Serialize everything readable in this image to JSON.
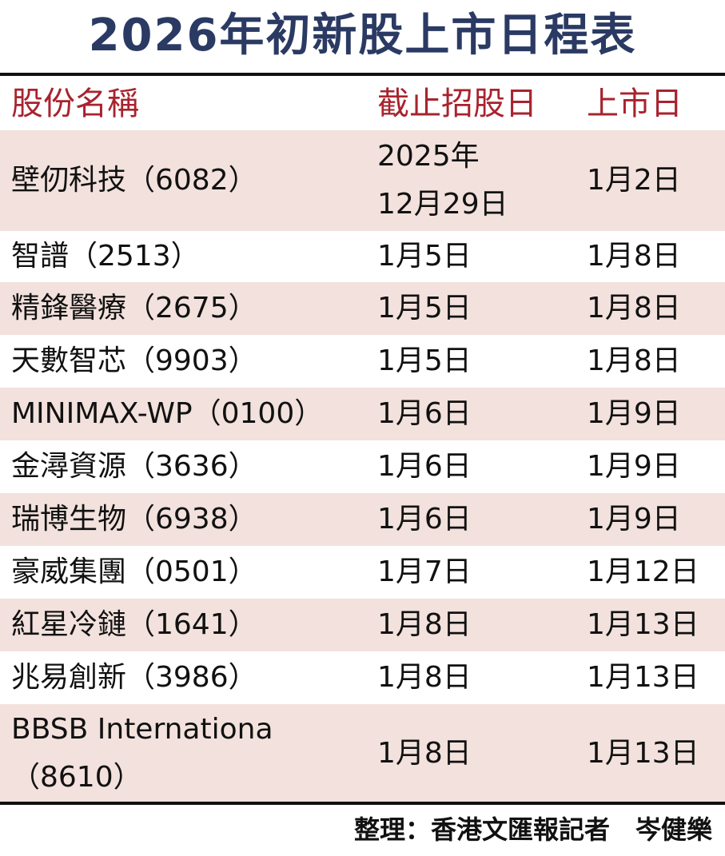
{
  "title": "2026年初新股上市日程表",
  "columns": [
    "股份名稱",
    "截止招股日",
    "上市日"
  ],
  "rows": [
    {
      "name": [
        "壁仞科技（6082）"
      ],
      "close": [
        "2025年",
        "12月29日"
      ],
      "list": "1月2日",
      "shaded": true
    },
    {
      "name": [
        "智譜（2513）"
      ],
      "close": [
        "1月5日"
      ],
      "list": "1月8日",
      "shaded": false
    },
    {
      "name": [
        "精鋒醫療（2675）"
      ],
      "close": [
        "1月5日"
      ],
      "list": "1月8日",
      "shaded": true
    },
    {
      "name": [
        "天數智芯（9903）"
      ],
      "close": [
        "1月5日"
      ],
      "list": "1月8日",
      "shaded": false
    },
    {
      "name": [
        "MINIMAX-WP（0100）"
      ],
      "close": [
        "1月6日"
      ],
      "list": "1月9日",
      "shaded": true
    },
    {
      "name": [
        "金潯資源（3636）"
      ],
      "close": [
        "1月6日"
      ],
      "list": "1月9日",
      "shaded": false
    },
    {
      "name": [
        "瑞博生物（6938）"
      ],
      "close": [
        "1月6日"
      ],
      "list": "1月9日",
      "shaded": true
    },
    {
      "name": [
        "豪威集團（0501）"
      ],
      "close": [
        "1月7日"
      ],
      "list": "1月12日",
      "shaded": false
    },
    {
      "name": [
        "紅星冷鏈（1641）"
      ],
      "close": [
        "1月8日"
      ],
      "list": "1月13日",
      "shaded": true
    },
    {
      "name": [
        "兆易創新（3986）"
      ],
      "close": [
        "1月8日"
      ],
      "list": "1月13日",
      "shaded": false
    },
    {
      "name": [
        "BBSB Internationa",
        "（8610）"
      ],
      "close": [
        "1月8日"
      ],
      "list": "1月13日",
      "shaded": true
    }
  ],
  "footer": "整理：香港文匯報記者　岑健樂",
  "colors": {
    "title": "#2a3a63",
    "header": "#a8232e",
    "shade": "#f2e1dc"
  }
}
